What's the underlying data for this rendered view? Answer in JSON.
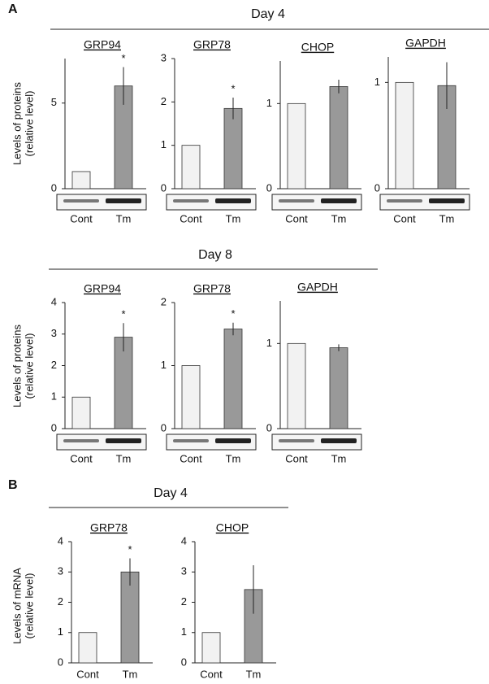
{
  "sections": [
    {
      "letter": "A",
      "title": "Day 4",
      "ylabel": [
        "Levels of proteins",
        "(relative level)"
      ]
    },
    {
      "title": "Day 8",
      "ylabel": [
        "Levels of proteins",
        "(relative level)"
      ]
    },
    {
      "letter": "B",
      "title": "Day 4",
      "ylabel": [
        "Levels of mRNA",
        "(relative level)"
      ]
    }
  ],
  "chart_data": [
    {
      "type": "bar",
      "title": "GRP94",
      "categories": [
        "Cont",
        "Tm"
      ],
      "values": [
        1,
        6.0
      ],
      "errors": [
        null,
        1.1
      ],
      "colors": [
        "#f2f2f2",
        "#999999"
      ],
      "ylim": [
        0,
        7.6
      ],
      "yticks": [
        0,
        5
      ],
      "annotation": "*"
    },
    {
      "type": "bar",
      "title": "GRP78",
      "categories": [
        "Cont",
        "Tm"
      ],
      "values": [
        1,
        1.85
      ],
      "errors": [
        null,
        0.25
      ],
      "colors": [
        "#f2f2f2",
        "#999999"
      ],
      "ylim": [
        0,
        3
      ],
      "yticks": [
        0,
        1,
        2,
        3
      ],
      "annotation": "*"
    },
    {
      "type": "bar",
      "title": "CHOP",
      "categories": [
        "Cont",
        "Tm"
      ],
      "values": [
        1,
        1.2
      ],
      "errors": [
        null,
        0.08
      ],
      "colors": [
        "#f2f2f2",
        "#999999"
      ],
      "ylim": [
        0,
        1.5
      ],
      "yticks": [
        0,
        1
      ]
    },
    {
      "type": "bar",
      "title": "GAPDH",
      "categories": [
        "Cont",
        "Tm"
      ],
      "values": [
        1,
        0.97
      ],
      "errors": [
        null,
        0.22
      ],
      "colors": [
        "#f2f2f2",
        "#999999"
      ],
      "ylim": [
        0,
        1.24
      ],
      "yticks": [
        0,
        1
      ]
    },
    {
      "type": "bar",
      "title": "GRP94",
      "categories": [
        "Cont",
        "Tm"
      ],
      "values": [
        1,
        2.9
      ],
      "errors": [
        null,
        0.45
      ],
      "colors": [
        "#f2f2f2",
        "#999999"
      ],
      "ylim": [
        0,
        4
      ],
      "yticks": [
        0,
        1,
        2,
        3,
        4
      ],
      "annotation": "*"
    },
    {
      "type": "bar",
      "title": "GRP78",
      "categories": [
        "Cont",
        "Tm"
      ],
      "values": [
        1,
        1.58
      ],
      "errors": [
        null,
        0.1
      ],
      "colors": [
        "#f2f2f2",
        "#999999"
      ],
      "ylim": [
        0,
        2
      ],
      "yticks": [
        0,
        1,
        2
      ],
      "annotation": "*"
    },
    {
      "type": "bar",
      "title": "GAPDH",
      "categories": [
        "Cont",
        "Tm"
      ],
      "values": [
        1,
        0.95
      ],
      "errors": [
        null,
        0.04
      ],
      "colors": [
        "#f2f2f2",
        "#999999"
      ],
      "ylim": [
        0,
        1.5
      ],
      "yticks": [
        0,
        1
      ]
    },
    {
      "type": "bar",
      "title": "GRP78",
      "categories": [
        "Cont",
        "Tm"
      ],
      "values": [
        1,
        3.0
      ],
      "errors": [
        null,
        0.45
      ],
      "colors": [
        "#f2f2f2",
        "#999999"
      ],
      "ylim": [
        0,
        4
      ],
      "yticks": [
        0,
        1,
        2,
        3,
        4
      ],
      "annotation": "*"
    },
    {
      "type": "bar",
      "title": "CHOP",
      "categories": [
        "Cont",
        "Tm"
      ],
      "values": [
        1,
        2.42
      ],
      "errors": [
        null,
        0.8
      ],
      "colors": [
        "#f2f2f2",
        "#999999"
      ],
      "ylim": [
        0,
        4
      ],
      "yticks": [
        0,
        1,
        2,
        3,
        4
      ]
    }
  ]
}
